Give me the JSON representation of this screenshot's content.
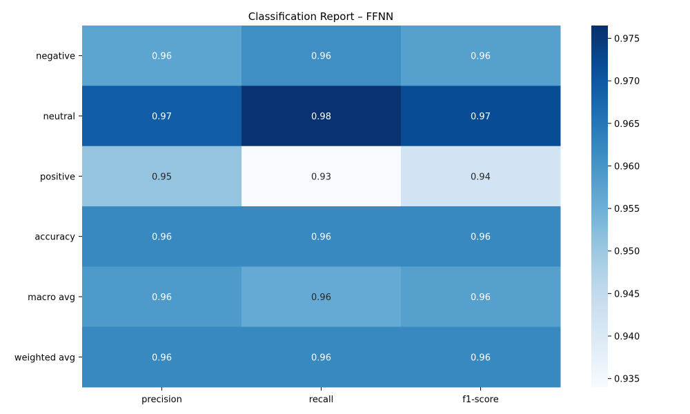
{
  "chart_data": {
    "type": "heatmap",
    "title": "Classification Report – FFNN",
    "rows": [
      "negative",
      "neutral",
      "positive",
      "accuracy",
      "macro avg",
      "weighted avg"
    ],
    "columns": [
      "precision",
      "recall",
      "f1-score"
    ],
    "values": [
      [
        0.957,
        0.961,
        0.958
      ],
      [
        0.969,
        0.976,
        0.972
      ],
      [
        0.951,
        0.934,
        0.942
      ],
      [
        0.962,
        0.962,
        0.962
      ],
      [
        0.959,
        0.956,
        0.958
      ],
      [
        0.962,
        0.962,
        0.962
      ]
    ],
    "labels": [
      [
        "0.96",
        "0.96",
        "0.96"
      ],
      [
        "0.97",
        "0.98",
        "0.97"
      ],
      [
        "0.95",
        "0.93",
        "0.94"
      ],
      [
        "0.96",
        "0.96",
        "0.96"
      ],
      [
        "0.96",
        "0.96",
        "0.96"
      ],
      [
        "0.96",
        "0.96",
        "0.96"
      ]
    ],
    "colormap": "Blues",
    "vmin": 0.934,
    "vmax": 0.9765,
    "colorbar_ticks": [
      "0.935",
      "0.940",
      "0.945",
      "0.950",
      "0.955",
      "0.960",
      "0.965",
      "0.970",
      "0.975"
    ],
    "colorbar_tick_values": [
      0.935,
      0.94,
      0.945,
      0.95,
      0.955,
      0.96,
      0.965,
      0.97,
      0.975
    ],
    "legend": "colorbar-right"
  }
}
